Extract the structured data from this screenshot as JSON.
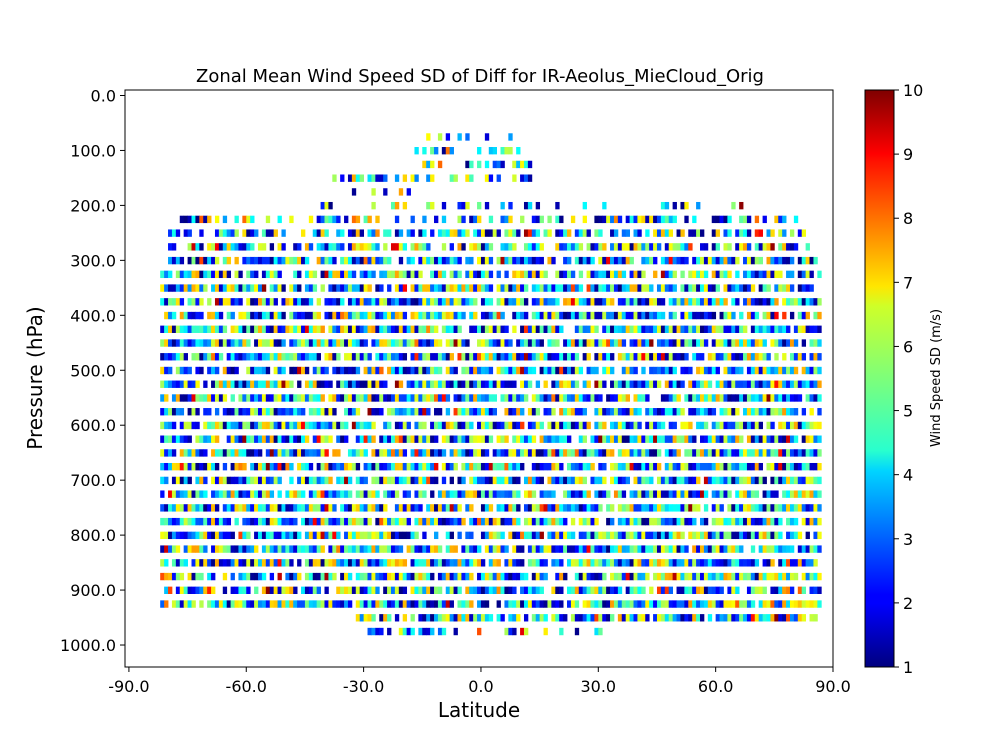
{
  "chart_data": {
    "type": "heatmap",
    "title": "Zonal Mean Wind Speed SD of Diff for IR-Aeolus_MieCloud_Orig",
    "xlabel": "Latitude",
    "ylabel": "Pressure (hPa)",
    "xlim": [
      -91,
      90
    ],
    "ylim": [
      1040,
      -10
    ],
    "y_inverted": true,
    "x_ticks": [
      -90,
      -60,
      -30,
      0,
      30,
      60,
      90
    ],
    "x_tick_labels": [
      "-90.0",
      "-60.0",
      "-30.0",
      "0.0",
      "30.0",
      "60.0",
      "90.0"
    ],
    "y_ticks": [
      0,
      100,
      200,
      300,
      400,
      500,
      600,
      700,
      800,
      900,
      1000
    ],
    "y_tick_labels": [
      "0.0",
      "100.0",
      "200.0",
      "300.0",
      "400.0",
      "500.0",
      "600.0",
      "700.0",
      "800.0",
      "900.0",
      "1000.0"
    ],
    "colorbar": {
      "label": "Wind Speed SD (m/s)",
      "colormap": "jet",
      "range": [
        1,
        10
      ],
      "ticks": [
        1,
        2,
        3,
        4,
        5,
        6,
        7,
        8,
        9,
        10
      ],
      "tick_labels": [
        "1",
        "2",
        "3",
        "4",
        "5",
        "6",
        "7",
        "8",
        "9",
        "10"
      ]
    },
    "grid": false,
    "pressure_levels": [
      50,
      75,
      100,
      125,
      150,
      175,
      200,
      225,
      250,
      275,
      300,
      325,
      350,
      375,
      400,
      425,
      450,
      475,
      500,
      525,
      550,
      575,
      600,
      625,
      650,
      675,
      700,
      725,
      750,
      775,
      800,
      825,
      850,
      875,
      900,
      925,
      950,
      975
    ],
    "level_latitude_ranges": [
      [
        -15,
        -13
      ],
      [
        -17,
        7
      ],
      [
        -18,
        10
      ],
      [
        -17,
        12
      ],
      [
        -38,
        12
      ],
      [
        -35,
        -12
      ],
      [
        -45,
        70
      ],
      [
        -78,
        80
      ],
      [
        -80,
        82
      ],
      [
        -80,
        84
      ],
      [
        -80,
        86
      ],
      [
        -82,
        86
      ],
      [
        -82,
        86
      ],
      [
        -82,
        86
      ],
      [
        -82,
        86
      ],
      [
        -82,
        86
      ],
      [
        -82,
        86
      ],
      [
        -82,
        86
      ],
      [
        -82,
        86
      ],
      [
        -82,
        86
      ],
      [
        -82,
        86
      ],
      [
        -82,
        86
      ],
      [
        -82,
        86
      ],
      [
        -82,
        86
      ],
      [
        -82,
        86
      ],
      [
        -82,
        86
      ],
      [
        -82,
        86
      ],
      [
        -82,
        86
      ],
      [
        -82,
        86
      ],
      [
        -82,
        86
      ],
      [
        -82,
        86
      ],
      [
        -82,
        86
      ],
      [
        -82,
        86
      ],
      [
        -82,
        86
      ],
      [
        -82,
        86
      ],
      [
        -82,
        86
      ],
      [
        -32,
        86
      ],
      [
        -30,
        32
      ]
    ],
    "level_fill_fractions": [
      0.3,
      0.35,
      0.45,
      0.55,
      0.55,
      0.4,
      0.35,
      0.6,
      0.7,
      0.75,
      0.85,
      0.85,
      0.9,
      0.9,
      0.9,
      0.9,
      0.9,
      0.9,
      0.9,
      0.9,
      0.9,
      0.85,
      0.9,
      0.9,
      0.9,
      0.9,
      0.9,
      0.85,
      0.9,
      0.9,
      0.85,
      0.9,
      0.9,
      0.85,
      0.85,
      0.9,
      0.85,
      0.3
    ],
    "value_range_observed": [
      1,
      10
    ],
    "cell_width_deg": 1
  }
}
